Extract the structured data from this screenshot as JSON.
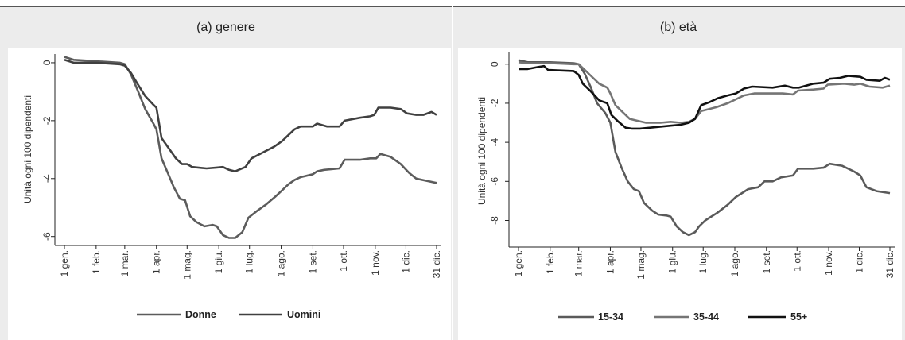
{
  "chart_data": [
    {
      "type": "line",
      "title": "(a)  genere",
      "ylabel": "Unità ogni 100 dipendenti",
      "xlabel": "",
      "x_ticks": [
        "1 gen.",
        "1 feb.",
        "1 mar.",
        "1 apr.",
        "1 mag.",
        "1 giu.",
        "1 lug.",
        "1 ago.",
        "1 set.",
        "1 ott.",
        "1 nov.",
        "1 dic.",
        "31 dic."
      ],
      "y_ticks": [
        "0",
        "-2",
        "-4",
        "-6"
      ],
      "ylim": [
        -6.2,
        0.3
      ],
      "xlim": [
        1,
        365
      ],
      "x_unit": "day of year",
      "grid": false,
      "legend_position": "bottom",
      "series": [
        {
          "name": "Donne",
          "color": "#5c5c5c",
          "points": [
            [
              1,
              0.2
            ],
            [
              10,
              0.1
            ],
            [
              32,
              0.05
            ],
            [
              55,
              0.0
            ],
            [
              60,
              -0.05
            ],
            [
              66,
              -0.4
            ],
            [
              72,
              -0.9
            ],
            [
              80,
              -1.6
            ],
            [
              88,
              -2.1
            ],
            [
              91,
              -2.3
            ],
            [
              96,
              -3.3
            ],
            [
              102,
              -3.8
            ],
            [
              108,
              -4.3
            ],
            [
              114,
              -4.7
            ],
            [
              119,
              -4.75
            ],
            [
              124,
              -5.3
            ],
            [
              130,
              -5.5
            ],
            [
              138,
              -5.65
            ],
            [
              146,
              -5.6
            ],
            [
              150,
              -5.65
            ],
            [
              156,
              -5.95
            ],
            [
              162,
              -6.05
            ],
            [
              168,
              -6.05
            ],
            [
              175,
              -5.85
            ],
            [
              181,
              -5.35
            ],
            [
              190,
              -5.1
            ],
            [
              198,
              -4.9
            ],
            [
              208,
              -4.6
            ],
            [
              214,
              -4.4
            ],
            [
              220,
              -4.2
            ],
            [
              226,
              -4.05
            ],
            [
              232,
              -3.95
            ],
            [
              244,
              -3.85
            ],
            [
              248,
              -3.75
            ],
            [
              255,
              -3.7
            ],
            [
              270,
              -3.65
            ],
            [
              275,
              -3.35
            ],
            [
              290,
              -3.35
            ],
            [
              300,
              -3.3
            ],
            [
              306,
              -3.3
            ],
            [
              310,
              -3.15
            ],
            [
              320,
              -3.25
            ],
            [
              330,
              -3.5
            ],
            [
              338,
              -3.8
            ],
            [
              345,
              -4.0
            ],
            [
              358,
              -4.1
            ],
            [
              365,
              -4.15
            ]
          ]
        },
        {
          "name": "Uomini",
          "color": "#404040",
          "points": [
            [
              1,
              0.1
            ],
            [
              10,
              0.0
            ],
            [
              32,
              0.0
            ],
            [
              55,
              -0.05
            ],
            [
              60,
              -0.1
            ],
            [
              66,
              -0.35
            ],
            [
              72,
              -0.7
            ],
            [
              80,
              -1.15
            ],
            [
              88,
              -1.45
            ],
            [
              91,
              -1.55
            ],
            [
              96,
              -2.6
            ],
            [
              102,
              -2.9
            ],
            [
              110,
              -3.3
            ],
            [
              116,
              -3.5
            ],
            [
              121,
              -3.5
            ],
            [
              126,
              -3.6
            ],
            [
              140,
              -3.65
            ],
            [
              150,
              -3.62
            ],
            [
              156,
              -3.6
            ],
            [
              162,
              -3.7
            ],
            [
              168,
              -3.75
            ],
            [
              178,
              -3.6
            ],
            [
              184,
              -3.3
            ],
            [
              195,
              -3.1
            ],
            [
              206,
              -2.9
            ],
            [
              214,
              -2.7
            ],
            [
              220,
              -2.5
            ],
            [
              226,
              -2.3
            ],
            [
              232,
              -2.2
            ],
            [
              244,
              -2.2
            ],
            [
              248,
              -2.1
            ],
            [
              258,
              -2.2
            ],
            [
              270,
              -2.2
            ],
            [
              275,
              -2.0
            ],
            [
              290,
              -1.9
            ],
            [
              300,
              -1.85
            ],
            [
              304,
              -1.8
            ],
            [
              308,
              -1.55
            ],
            [
              320,
              -1.55
            ],
            [
              330,
              -1.6
            ],
            [
              336,
              -1.75
            ],
            [
              345,
              -1.8
            ],
            [
              352,
              -1.8
            ],
            [
              360,
              -1.7
            ],
            [
              365,
              -1.8
            ]
          ]
        }
      ]
    },
    {
      "type": "line",
      "title": "(b)  età",
      "ylabel": "Unità ogni 100 dipendenti",
      "xlabel": "",
      "x_ticks": [
        "1 gen.",
        "1 feb.",
        "1 mar.",
        "1 apr.",
        "1 mag.",
        "1 giu.",
        "1 lug.",
        "1 ago.",
        "1 set.",
        "1 ott.",
        "1 nov.",
        "1 dic.",
        "31 dic."
      ],
      "y_ticks": [
        "0",
        "-2",
        "-4",
        "-6",
        "-8"
      ],
      "ylim": [
        -9.2,
        0.6
      ],
      "xlim": [
        1,
        365
      ],
      "x_unit": "day of year",
      "grid": false,
      "legend_position": "bottom",
      "series": [
        {
          "name": "15-34",
          "color": "#5a5a5a",
          "points": [
            [
              1,
              0.2
            ],
            [
              10,
              0.1
            ],
            [
              32,
              0.1
            ],
            [
              55,
              0.05
            ],
            [
              60,
              0.0
            ],
            [
              66,
              -0.5
            ],
            [
              72,
              -1.2
            ],
            [
              78,
              -2.0
            ],
            [
              86,
              -2.5
            ],
            [
              91,
              -3.0
            ],
            [
              96,
              -4.5
            ],
            [
              102,
              -5.3
            ],
            [
              108,
              -6.0
            ],
            [
              114,
              -6.4
            ],
            [
              119,
              -6.5
            ],
            [
              124,
              -7.1
            ],
            [
              132,
              -7.5
            ],
            [
              138,
              -7.7
            ],
            [
              146,
              -7.75
            ],
            [
              150,
              -7.8
            ],
            [
              156,
              -8.3
            ],
            [
              162,
              -8.6
            ],
            [
              168,
              -8.75
            ],
            [
              174,
              -8.6
            ],
            [
              178,
              -8.3
            ],
            [
              184,
              -8.0
            ],
            [
              196,
              -7.6
            ],
            [
              206,
              -7.2
            ],
            [
              214,
              -6.8
            ],
            [
              220,
              -6.6
            ],
            [
              226,
              -6.4
            ],
            [
              236,
              -6.3
            ],
            [
              242,
              -6.0
            ],
            [
              250,
              -6.0
            ],
            [
              258,
              -5.8
            ],
            [
              270,
              -5.7
            ],
            [
              275,
              -5.35
            ],
            [
              290,
              -5.35
            ],
            [
              300,
              -5.3
            ],
            [
              306,
              -5.1
            ],
            [
              318,
              -5.2
            ],
            [
              330,
              -5.5
            ],
            [
              336,
              -5.7
            ],
            [
              342,
              -6.3
            ],
            [
              352,
              -6.5
            ],
            [
              365,
              -6.6
            ]
          ]
        },
        {
          "name": "35-44",
          "color": "#757575",
          "points": [
            [
              1,
              0.1
            ],
            [
              10,
              0.05
            ],
            [
              32,
              0.05
            ],
            [
              55,
              0.0
            ],
            [
              60,
              0.0
            ],
            [
              66,
              -0.3
            ],
            [
              72,
              -0.6
            ],
            [
              80,
              -1.0
            ],
            [
              88,
              -1.2
            ],
            [
              91,
              -1.5
            ],
            [
              96,
              -2.1
            ],
            [
              102,
              -2.4
            ],
            [
              110,
              -2.8
            ],
            [
              118,
              -2.9
            ],
            [
              126,
              -3.0
            ],
            [
              140,
              -3.0
            ],
            [
              150,
              -2.95
            ],
            [
              160,
              -3.0
            ],
            [
              168,
              -2.95
            ],
            [
              174,
              -2.8
            ],
            [
              180,
              -2.4
            ],
            [
              195,
              -2.2
            ],
            [
              206,
              -2.0
            ],
            [
              214,
              -1.8
            ],
            [
              222,
              -1.6
            ],
            [
              232,
              -1.5
            ],
            [
              250,
              -1.5
            ],
            [
              260,
              -1.5
            ],
            [
              270,
              -1.55
            ],
            [
              275,
              -1.35
            ],
            [
              290,
              -1.3
            ],
            [
              300,
              -1.25
            ],
            [
              304,
              -1.05
            ],
            [
              320,
              -1.0
            ],
            [
              330,
              -1.05
            ],
            [
              336,
              -1.0
            ],
            [
              345,
              -1.15
            ],
            [
              358,
              -1.2
            ],
            [
              365,
              -1.1
            ]
          ]
        },
        {
          "name": "55+",
          "color": "#111111",
          "points": [
            [
              1,
              -0.25
            ],
            [
              10,
              -0.25
            ],
            [
              20,
              -0.15
            ],
            [
              26,
              -0.1
            ],
            [
              30,
              -0.3
            ],
            [
              55,
              -0.35
            ],
            [
              60,
              -0.55
            ],
            [
              64,
              -1.0
            ],
            [
              72,
              -1.4
            ],
            [
              80,
              -1.85
            ],
            [
              88,
              -2.0
            ],
            [
              92,
              -2.6
            ],
            [
              98,
              -2.9
            ],
            [
              106,
              -3.25
            ],
            [
              112,
              -3.3
            ],
            [
              120,
              -3.3
            ],
            [
              130,
              -3.25
            ],
            [
              140,
              -3.2
            ],
            [
              150,
              -3.15
            ],
            [
              160,
              -3.1
            ],
            [
              168,
              -3.0
            ],
            [
              174,
              -2.8
            ],
            [
              180,
              -2.1
            ],
            [
              188,
              -1.95
            ],
            [
              196,
              -1.75
            ],
            [
              206,
              -1.6
            ],
            [
              214,
              -1.5
            ],
            [
              222,
              -1.25
            ],
            [
              230,
              -1.15
            ],
            [
              250,
              -1.2
            ],
            [
              262,
              -1.1
            ],
            [
              270,
              -1.2
            ],
            [
              276,
              -1.2
            ],
            [
              290,
              -1.0
            ],
            [
              300,
              -0.95
            ],
            [
              306,
              -0.75
            ],
            [
              316,
              -0.7
            ],
            [
              324,
              -0.6
            ],
            [
              336,
              -0.65
            ],
            [
              342,
              -0.8
            ],
            [
              355,
              -0.85
            ],
            [
              360,
              -0.7
            ],
            [
              365,
              -0.8
            ]
          ]
        }
      ]
    }
  ]
}
